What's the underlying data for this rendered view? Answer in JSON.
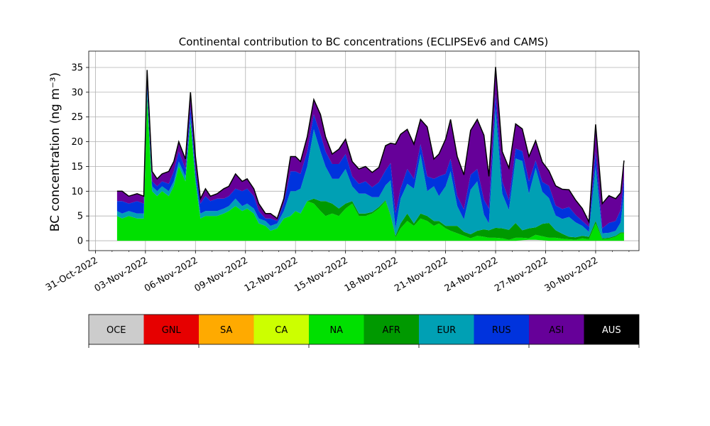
{
  "chart_data": {
    "type": "area",
    "stacked": true,
    "title": "Continental contribution to BC concentrations (ECLIPSEv6 and CAMS)",
    "ylabel": "BC concentration (ng m⁻³)",
    "xlabel": "",
    "grid": true,
    "x_range_days": [
      -0.4,
      32.6
    ],
    "ylim": [
      -2,
      38.3
    ],
    "y_ticks": [
      0,
      5,
      10,
      15,
      20,
      25,
      30,
      35
    ],
    "x_ticks": [
      {
        "day": 0,
        "label": "31-Oct-2022"
      },
      {
        "day": 3,
        "label": "03-Nov-2022"
      },
      {
        "day": 6,
        "label": "06-Nov-2022"
      },
      {
        "day": 9,
        "label": "09-Nov-2022"
      },
      {
        "day": 12,
        "label": "12-Nov-2022"
      },
      {
        "day": 15,
        "label": "15-Nov-2022"
      },
      {
        "day": 18,
        "label": "18-Nov-2022"
      },
      {
        "day": 21,
        "label": "21-Nov-2022"
      },
      {
        "day": 24,
        "label": "24-Nov-2022"
      },
      {
        "day": 27,
        "label": "27-Nov-2022"
      },
      {
        "day": 30,
        "label": "30-Nov-2022"
      }
    ],
    "x_days": [
      1.3,
      1.6,
      2.0,
      2.5,
      2.9,
      3.1,
      3.4,
      3.7,
      4.0,
      4.4,
      4.7,
      5.0,
      5.4,
      5.7,
      6.0,
      6.3,
      6.6,
      6.9,
      7.3,
      7.7,
      8.0,
      8.4,
      8.8,
      9.1,
      9.5,
      9.8,
      10.2,
      10.5,
      10.9,
      11.3,
      11.7,
      12.0,
      12.3,
      12.7,
      13.1,
      13.5,
      13.8,
      14.2,
      14.6,
      15.0,
      15.4,
      15.8,
      16.2,
      16.6,
      17.0,
      17.4,
      17.7,
      18.0,
      18.3,
      18.7,
      19.1,
      19.5,
      19.9,
      20.3,
      20.6,
      21.0,
      21.3,
      21.7,
      22.1,
      22.5,
      22.9,
      23.3,
      23.6,
      24.0,
      24.4,
      24.8,
      25.2,
      25.6,
      26.0,
      26.4,
      26.8,
      27.2,
      27.6,
      28.0,
      28.4,
      28.8,
      29.2,
      29.6,
      30.0,
      30.4,
      30.8,
      31.2,
      31.5,
      31.7
    ],
    "series": [
      {
        "name": "OCE",
        "color": "#cccccc",
        "values": [
          0,
          0,
          0,
          0,
          0,
          0,
          0,
          0,
          0,
          0,
          0,
          0,
          0,
          0,
          0,
          0,
          0,
          0,
          0,
          0,
          0,
          0,
          0,
          0,
          0,
          0,
          0,
          0,
          0,
          0,
          0,
          0,
          0,
          0,
          0,
          0,
          0,
          0,
          0,
          0,
          0,
          0,
          0,
          0,
          0,
          0,
          0,
          0,
          0,
          0,
          0,
          0,
          0,
          0,
          0,
          0,
          0,
          0,
          0,
          0,
          0,
          0,
          0,
          0,
          0,
          0,
          0,
          0.1,
          0.2,
          0.2,
          0.1,
          0,
          0,
          0,
          0,
          0,
          0,
          0,
          0,
          0,
          0,
          0,
          0,
          0
        ]
      },
      {
        "name": "GNL",
        "color": "#e60000",
        "values": [
          0,
          0,
          0,
          0,
          0,
          0,
          0,
          0,
          0,
          0,
          0,
          0,
          0,
          0,
          0,
          0,
          0,
          0,
          0,
          0,
          0,
          0,
          0,
          0,
          0,
          0,
          0,
          0,
          0,
          0,
          0,
          0,
          0,
          0,
          0,
          0,
          0,
          0,
          0,
          0,
          0,
          0,
          0,
          0,
          0,
          0,
          0,
          0,
          0,
          0,
          0,
          0,
          0,
          0,
          0,
          0,
          0,
          0,
          0,
          0,
          0,
          0,
          0,
          0,
          0,
          0,
          0,
          0,
          0,
          0,
          0,
          0,
          0,
          0,
          0,
          0,
          0,
          0,
          0,
          0,
          0,
          0,
          0,
          0
        ]
      },
      {
        "name": "SA",
        "color": "#ffaa00",
        "values": [
          0,
          0,
          0,
          0,
          0,
          0,
          0,
          0,
          0,
          0,
          0,
          0,
          0,
          0,
          0,
          0,
          0,
          0,
          0,
          0,
          0,
          0,
          0,
          0,
          0,
          0,
          0,
          0,
          0,
          0,
          0,
          0,
          0,
          0,
          0,
          0,
          0,
          0,
          0,
          0,
          0,
          0,
          0,
          0,
          0,
          0,
          0,
          0,
          0,
          0,
          0,
          0,
          0,
          0,
          0,
          0,
          0,
          0,
          0,
          0,
          0,
          0,
          0,
          0,
          0,
          0,
          0,
          0,
          0,
          0,
          0,
          0,
          0,
          0,
          0,
          0,
          0,
          0,
          0,
          0,
          0,
          0,
          0,
          0
        ]
      },
      {
        "name": "CA",
        "color": "#ccff00",
        "values": [
          0,
          0,
          0,
          0,
          0,
          0,
          0,
          0,
          0,
          0,
          0,
          0,
          0,
          0,
          0,
          0,
          0,
          0,
          0,
          0,
          0,
          0,
          0,
          0,
          0,
          0,
          0,
          0,
          0,
          0,
          0,
          0,
          0,
          0,
          0,
          0,
          0,
          0,
          0,
          0,
          0,
          0,
          0,
          0,
          0,
          0,
          0,
          0,
          0,
          0,
          0,
          0,
          0,
          0,
          0,
          0,
          0,
          0,
          0,
          0,
          0,
          0,
          0,
          0,
          0,
          0,
          0,
          0,
          0,
          0,
          0,
          0,
          0,
          0,
          0,
          0,
          0,
          0,
          0,
          0,
          0,
          0,
          0,
          0
        ]
      },
      {
        "name": "NA",
        "color": "#00e000",
        "values": [
          5,
          4.5,
          5,
          4.5,
          4.5,
          29,
          10,
          9,
          10,
          9,
          11,
          15,
          12,
          24,
          12,
          4.5,
          5,
          5,
          5,
          5.5,
          6,
          7,
          6,
          6.5,
          5.5,
          3.5,
          3,
          2,
          2.5,
          4.5,
          5,
          6,
          5.5,
          8,
          7.5,
          6,
          5,
          5.5,
          5,
          6.5,
          7.5,
          5,
          5,
          5.5,
          6.5,
          8,
          5,
          0.7,
          2.5,
          4,
          3,
          4.5,
          4,
          3,
          3.5,
          2.5,
          2,
          1.5,
          1,
          0.5,
          1,
          0.8,
          0.6,
          0.6,
          0.5,
          0.2,
          0.6,
          0.5,
          0.3,
          1,
          0.8,
          0.6,
          0.6,
          0.4,
          0.3,
          0.2,
          0.5,
          0.3,
          3.5,
          0.3,
          0.4,
          0.8,
          1.5,
          1.5
        ]
      },
      {
        "name": "AFR",
        "color": "#009900",
        "values": [
          0,
          0,
          0,
          0,
          0,
          0,
          0,
          0,
          0,
          0,
          0,
          0,
          0,
          0,
          0,
          0,
          0,
          0,
          0,
          0,
          0,
          0,
          0,
          0,
          0,
          0,
          0,
          0,
          0,
          0,
          0,
          0,
          0,
          0,
          1,
          2,
          3,
          2,
          1.5,
          1,
          0.5,
          0.5,
          0.5,
          0.3,
          0.3,
          0.2,
          0.2,
          0.3,
          1,
          1.5,
          0.5,
          1,
          1,
          1,
          0.5,
          0.5,
          1,
          1.5,
          0.8,
          0.8,
          1,
          1.5,
          1.5,
          2,
          2,
          2,
          3,
          1.5,
          2,
          1.5,
          2.5,
          3,
          1.5,
          1,
          0.5,
          0.5,
          0.5,
          0.5,
          0.5,
          0.2,
          0.2,
          0.2,
          0.2,
          0.2
        ]
      },
      {
        "name": "EUR",
        "color": "#00a0b4",
        "values": [
          1,
          1,
          1,
          1,
          1,
          1.5,
          1,
          1,
          1,
          1,
          1,
          1,
          1,
          1,
          1,
          1,
          1,
          1,
          1,
          1,
          1,
          1.5,
          1,
          1,
          1,
          1,
          1,
          1,
          1,
          1.5,
          5,
          4,
          5,
          7,
          14,
          10,
          7,
          5,
          6,
          7,
          3,
          4,
          4,
          3,
          2,
          3,
          7,
          1.5,
          5,
          6,
          7,
          12,
          5,
          7,
          5,
          8,
          11,
          4,
          2.5,
          9,
          10,
          3,
          1.4,
          24,
          7,
          4,
          13,
          14,
          7,
          12,
          6.5,
          5,
          3,
          3,
          4,
          3,
          2,
          1,
          11,
          1,
          1,
          1,
          2,
          8
        ]
      },
      {
        "name": "RUS",
        "color": "#0033dd",
        "values": [
          2,
          2.5,
          1.5,
          2.5,
          2,
          1.5,
          1,
          1,
          1,
          1.5,
          2,
          2,
          1.5,
          2,
          1.5,
          2,
          3,
          2,
          2.5,
          2,
          2,
          2,
          3,
          3,
          2.5,
          1.5,
          0.5,
          1.5,
          0.5,
          1.5,
          4,
          4,
          3,
          3,
          3,
          3.5,
          3,
          3,
          3,
          3,
          2,
          2,
          2.5,
          2,
          3,
          3,
          3.5,
          3,
          2,
          3,
          2,
          2,
          3,
          1.5,
          4,
          2.5,
          2.5,
          2,
          2,
          3,
          2.5,
          3,
          3,
          3,
          2.5,
          2,
          2,
          2,
          2.5,
          1.5,
          2,
          2.5,
          2,
          2,
          2,
          1.5,
          1,
          1,
          3,
          1,
          2,
          2,
          2.5,
          3
        ]
      },
      {
        "name": "ASI",
        "color": "#660099",
        "values": [
          2,
          2,
          1.5,
          1.5,
          1.5,
          2.5,
          2,
          1.5,
          1.5,
          2.5,
          2,
          2,
          2,
          3,
          2.5,
          1,
          1.5,
          1,
          1,
          2,
          2,
          3,
          2,
          2,
          1.5,
          1.5,
          1,
          1,
          0.5,
          1,
          3,
          3,
          2.5,
          3,
          3,
          4,
          3,
          2,
          3,
          3,
          3,
          3,
          3,
          3,
          3,
          5,
          4,
          14,
          11,
          8,
          7,
          5,
          10,
          4,
          4.5,
          7,
          8,
          8,
          7,
          9,
          10,
          13,
          6.5,
          5.5,
          6,
          6.5,
          5,
          4.5,
          5,
          4,
          4,
          3,
          4,
          4,
          3.5,
          3,
          2.5,
          1,
          5.5,
          5,
          5.5,
          4.5,
          3.5,
          3.5
        ]
      },
      {
        "name": "AUS",
        "color": "#000000",
        "values": [
          0,
          0,
          0,
          0,
          0,
          0,
          0,
          0,
          0,
          0,
          0,
          0,
          0,
          0,
          0,
          0,
          0,
          0,
          0,
          0,
          0,
          0,
          0,
          0,
          0,
          0,
          0,
          0,
          0,
          0,
          0,
          0,
          0,
          0,
          0,
          0,
          0,
          0,
          0,
          0,
          0,
          0,
          0,
          0,
          0,
          0,
          0,
          0,
          0,
          0,
          0,
          0,
          0,
          0,
          0,
          0,
          0,
          0,
          0,
          0,
          0,
          0,
          0,
          0,
          0,
          0,
          0,
          0,
          0,
          0,
          0,
          0,
          0,
          0,
          0,
          0,
          0,
          0,
          0,
          0,
          0,
          0,
          0,
          0
        ]
      }
    ],
    "total_line_color": "#000000",
    "legend": {
      "placement": "bottom",
      "entries": [
        "OCE",
        "GNL",
        "SA",
        "CA",
        "NA",
        "AFR",
        "EUR",
        "RUS",
        "ASI",
        "AUS"
      ]
    }
  }
}
